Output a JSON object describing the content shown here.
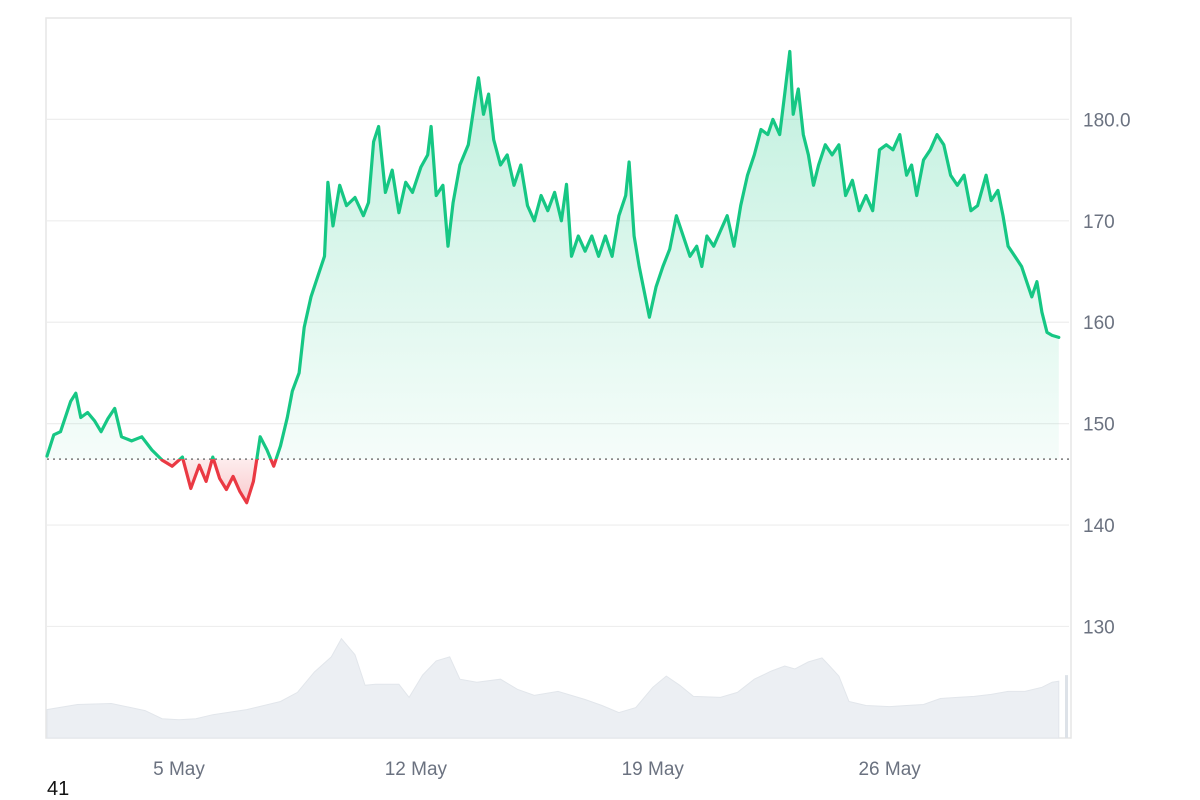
{
  "chart_data": {
    "type": "area",
    "title": "",
    "xlabel": "",
    "ylabel": "",
    "ylim": [
      119,
      190
    ],
    "y_ticks": [
      {
        "value": 130,
        "label": "130"
      },
      {
        "value": 140,
        "label": "140"
      },
      {
        "value": 150,
        "label": "150"
      },
      {
        "value": 160,
        "label": "160"
      },
      {
        "value": 170,
        "label": "170"
      },
      {
        "value": 180,
        "label": "180.0"
      }
    ],
    "x_ticks": [
      {
        "day": 5,
        "label": "5 May"
      },
      {
        "day": 12,
        "label": "12 May"
      },
      {
        "day": 19,
        "label": "19 May"
      },
      {
        "day": 26,
        "label": "26 May"
      }
    ],
    "x_range": [
      1.1,
      31.3
    ],
    "baseline": 146.5,
    "grid": true,
    "legend": "none",
    "colors": {
      "up": "#16c784",
      "down": "#ea3943",
      "grid": "#eeeeee",
      "baseline": "#777777",
      "volume": "#eceff3",
      "tick_text": "#6b7280"
    },
    "price_series": {
      "name": "",
      "points": [
        [
          1.1,
          146.8
        ],
        [
          1.3,
          148.9
        ],
        [
          1.5,
          149.2
        ],
        [
          1.8,
          152.2
        ],
        [
          1.95,
          153.0
        ],
        [
          2.1,
          150.6
        ],
        [
          2.3,
          151.1
        ],
        [
          2.5,
          150.3
        ],
        [
          2.7,
          149.2
        ],
        [
          2.9,
          150.5
        ],
        [
          3.1,
          151.5
        ],
        [
          3.3,
          148.7
        ],
        [
          3.6,
          148.3
        ],
        [
          3.9,
          148.7
        ],
        [
          4.2,
          147.4
        ],
        [
          4.5,
          146.4
        ],
        [
          4.8,
          145.8
        ],
        [
          5.1,
          146.7
        ],
        [
          5.35,
          143.6
        ],
        [
          5.6,
          145.9
        ],
        [
          5.8,
          144.3
        ],
        [
          6.0,
          146.7
        ],
        [
          6.2,
          144.6
        ],
        [
          6.4,
          143.5
        ],
        [
          6.6,
          144.8
        ],
        [
          6.8,
          143.3
        ],
        [
          7.0,
          142.2
        ],
        [
          7.2,
          144.3
        ],
        [
          7.4,
          148.7
        ],
        [
          7.6,
          147.4
        ],
        [
          7.8,
          145.8
        ],
        [
          8.0,
          147.8
        ],
        [
          8.2,
          150.6
        ],
        [
          8.35,
          153.2
        ],
        [
          8.55,
          155.0
        ],
        [
          8.7,
          159.5
        ],
        [
          8.9,
          162.5
        ],
        [
          9.1,
          164.5
        ],
        [
          9.3,
          166.5
        ],
        [
          9.4,
          173.8
        ],
        [
          9.55,
          169.5
        ],
        [
          9.75,
          173.5
        ],
        [
          9.95,
          171.5
        ],
        [
          10.2,
          172.3
        ],
        [
          10.45,
          170.5
        ],
        [
          10.6,
          171.8
        ],
        [
          10.75,
          177.8
        ],
        [
          10.9,
          179.3
        ],
        [
          11.1,
          172.8
        ],
        [
          11.3,
          175.0
        ],
        [
          11.5,
          170.8
        ],
        [
          11.7,
          173.8
        ],
        [
          11.9,
          172.8
        ],
        [
          12.15,
          175.3
        ],
        [
          12.35,
          176.5
        ],
        [
          12.45,
          179.3
        ],
        [
          12.6,
          172.5
        ],
        [
          12.8,
          173.5
        ],
        [
          12.95,
          167.5
        ],
        [
          13.1,
          171.8
        ],
        [
          13.3,
          175.5
        ],
        [
          13.55,
          177.5
        ],
        [
          13.75,
          182.0
        ],
        [
          13.85,
          184.1
        ],
        [
          14.0,
          180.5
        ],
        [
          14.15,
          182.5
        ],
        [
          14.3,
          178.0
        ],
        [
          14.5,
          175.5
        ],
        [
          14.7,
          176.5
        ],
        [
          14.9,
          173.5
        ],
        [
          15.1,
          175.5
        ],
        [
          15.3,
          171.5
        ],
        [
          15.5,
          170.0
        ],
        [
          15.7,
          172.5
        ],
        [
          15.9,
          171.0
        ],
        [
          16.1,
          172.8
        ],
        [
          16.3,
          170.0
        ],
        [
          16.45,
          173.6
        ],
        [
          16.6,
          166.5
        ],
        [
          16.8,
          168.5
        ],
        [
          17.0,
          167.0
        ],
        [
          17.2,
          168.5
        ],
        [
          17.4,
          166.5
        ],
        [
          17.6,
          168.5
        ],
        [
          17.8,
          166.5
        ],
        [
          18.0,
          170.5
        ],
        [
          18.2,
          172.5
        ],
        [
          18.3,
          175.8
        ],
        [
          18.45,
          168.5
        ],
        [
          18.6,
          165.5
        ],
        [
          18.75,
          163.0
        ],
        [
          18.9,
          160.5
        ],
        [
          19.1,
          163.5
        ],
        [
          19.3,
          165.5
        ],
        [
          19.5,
          167.2
        ],
        [
          19.7,
          170.5
        ],
        [
          19.9,
          168.5
        ],
        [
          20.1,
          166.5
        ],
        [
          20.3,
          167.5
        ],
        [
          20.45,
          165.5
        ],
        [
          20.6,
          168.5
        ],
        [
          20.8,
          167.5
        ],
        [
          21.0,
          169.0
        ],
        [
          21.2,
          170.5
        ],
        [
          21.4,
          167.5
        ],
        [
          21.6,
          171.5
        ],
        [
          21.8,
          174.5
        ],
        [
          22.0,
          176.5
        ],
        [
          22.2,
          179.0
        ],
        [
          22.4,
          178.5
        ],
        [
          22.55,
          180.0
        ],
        [
          22.75,
          178.5
        ],
        [
          22.9,
          182.5
        ],
        [
          23.05,
          186.7
        ],
        [
          23.15,
          180.5
        ],
        [
          23.3,
          183.0
        ],
        [
          23.45,
          178.5
        ],
        [
          23.6,
          176.5
        ],
        [
          23.75,
          173.5
        ],
        [
          23.9,
          175.5
        ],
        [
          24.1,
          177.5
        ],
        [
          24.3,
          176.5
        ],
        [
          24.5,
          177.5
        ],
        [
          24.7,
          172.5
        ],
        [
          24.9,
          174.0
        ],
        [
          25.1,
          171.0
        ],
        [
          25.3,
          172.5
        ],
        [
          25.5,
          171.0
        ],
        [
          25.7,
          177.0
        ],
        [
          25.9,
          177.5
        ],
        [
          26.1,
          177.0
        ],
        [
          26.3,
          178.5
        ],
        [
          26.5,
          174.5
        ],
        [
          26.65,
          175.5
        ],
        [
          26.8,
          172.5
        ],
        [
          27.0,
          176.0
        ],
        [
          27.2,
          177.0
        ],
        [
          27.4,
          178.5
        ],
        [
          27.6,
          177.5
        ],
        [
          27.8,
          174.5
        ],
        [
          28.0,
          173.5
        ],
        [
          28.2,
          174.5
        ],
        [
          28.4,
          171.0
        ],
        [
          28.6,
          171.5
        ],
        [
          28.85,
          174.5
        ],
        [
          29.0,
          172.0
        ],
        [
          29.2,
          173.0
        ],
        [
          29.35,
          170.5
        ],
        [
          29.5,
          167.5
        ],
        [
          29.7,
          166.5
        ],
        [
          29.9,
          165.5
        ],
        [
          30.05,
          164.0
        ],
        [
          30.2,
          162.5
        ],
        [
          30.35,
          164.0
        ],
        [
          30.5,
          161.0
        ],
        [
          30.65,
          159.0
        ],
        [
          30.8,
          158.7
        ],
        [
          31.0,
          158.5
        ]
      ]
    },
    "volume_series": {
      "name": "",
      "points": [
        [
          1.1,
          121.8
        ],
        [
          2.0,
          122.3
        ],
        [
          3.0,
          122.4
        ],
        [
          4.0,
          121.7
        ],
        [
          4.5,
          120.9
        ],
        [
          5.0,
          120.8
        ],
        [
          5.5,
          120.9
        ],
        [
          6.0,
          121.3
        ],
        [
          7.0,
          121.8
        ],
        [
          8.0,
          122.6
        ],
        [
          8.5,
          123.5
        ],
        [
          9.0,
          125.5
        ],
        [
          9.5,
          127.0
        ],
        [
          9.8,
          128.8
        ],
        [
          10.2,
          127.2
        ],
        [
          10.5,
          124.2
        ],
        [
          10.8,
          124.3
        ],
        [
          11.5,
          124.3
        ],
        [
          11.8,
          123.0
        ],
        [
          12.2,
          125.2
        ],
        [
          12.6,
          126.6
        ],
        [
          13.0,
          127.0
        ],
        [
          13.3,
          124.8
        ],
        [
          13.8,
          124.5
        ],
        [
          14.5,
          124.8
        ],
        [
          15.0,
          123.8
        ],
        [
          15.5,
          123.2
        ],
        [
          16.2,
          123.6
        ],
        [
          17.0,
          122.8
        ],
        [
          17.5,
          122.2
        ],
        [
          18.0,
          121.5
        ],
        [
          18.5,
          122.0
        ],
        [
          19.0,
          124.0
        ],
        [
          19.4,
          125.1
        ],
        [
          19.8,
          124.2
        ],
        [
          20.2,
          123.1
        ],
        [
          21.0,
          123.0
        ],
        [
          21.5,
          123.5
        ],
        [
          22.0,
          124.8
        ],
        [
          22.5,
          125.6
        ],
        [
          22.9,
          126.1
        ],
        [
          23.2,
          125.8
        ],
        [
          23.6,
          126.5
        ],
        [
          24.0,
          126.9
        ],
        [
          24.2,
          126.2
        ],
        [
          24.5,
          125.1
        ],
        [
          24.8,
          122.6
        ],
        [
          25.3,
          122.2
        ],
        [
          26.0,
          122.1
        ],
        [
          26.5,
          122.2
        ],
        [
          27.0,
          122.3
        ],
        [
          27.5,
          122.9
        ],
        [
          28.0,
          123.0
        ],
        [
          28.5,
          123.1
        ],
        [
          29.0,
          123.3
        ],
        [
          29.5,
          123.6
        ],
        [
          30.0,
          123.6
        ],
        [
          30.5,
          124.0
        ],
        [
          30.8,
          124.5
        ],
        [
          31.0,
          124.6
        ]
      ]
    }
  },
  "footer": {
    "label": "41"
  }
}
